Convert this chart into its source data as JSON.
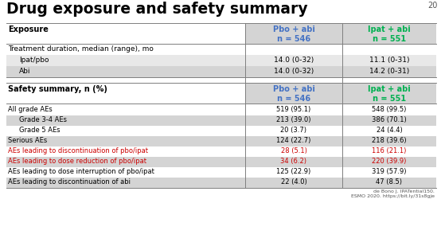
{
  "title": "Drug exposure and safety summary",
  "background_color": "#ffffff",
  "col2_color": "#4472c4",
  "col3_color": "#00b050",
  "red_color": "#cc0000",
  "gray_bg": "#d4d4d4",
  "alt_gray_bg": "#e8e8e8",
  "line_color": "#7f7f7f",
  "col1_header": "Exposure",
  "col2_header": "Pbo + abi\nn = 546",
  "col3_header": "Ipat + abi\nn = 551",
  "exposure_section_label": "Treatment duration, median (range), mo",
  "exposure_rows": [
    [
      "Ipat/pbo",
      "14.0 (0-32)",
      "11.1 (0-31)",
      false
    ],
    [
      "Abi",
      "14.0 (0-32)",
      "14.2 (0-31)",
      true
    ]
  ],
  "safety_col1_header": "Safety summary, n (%)",
  "safety_rows": [
    [
      "All grade AEs",
      "519 (95.1)",
      "548 (99.5)",
      false,
      false
    ],
    [
      "Grade 3-4 AEs",
      "213 (39.0)",
      "386 (70.1)",
      false,
      true
    ],
    [
      "Grade 5 AEs",
      "20 (3.7)",
      "24 (4.4)",
      false,
      false
    ],
    [
      "Serious AEs",
      "124 (22.7)",
      "218 (39.6)",
      false,
      true
    ],
    [
      "AEs leading to discontinuation of pbo/ipat",
      "28 (5.1)",
      "116 (21.1)",
      true,
      false
    ],
    [
      "AEs leading to dose reduction of pbo/ipat",
      "34 (6.2)",
      "220 (39.9)",
      true,
      true
    ],
    [
      "AEs leading to dose interruption of pbo/ipat",
      "125 (22.9)",
      "319 (57.9)",
      false,
      false
    ],
    [
      "AEs leading to discontinuation of abi",
      "22 (4.0)",
      "47 (8.5)",
      false,
      true
    ]
  ],
  "footer_left": "de Bono J. IPATential150.",
  "footer_right": "ESMO 2020. https://bit.ly/31s8gje",
  "page_num": "20",
  "indented_rows": [
    "Grade 3-4 AEs",
    "Grade 5 AEs"
  ]
}
